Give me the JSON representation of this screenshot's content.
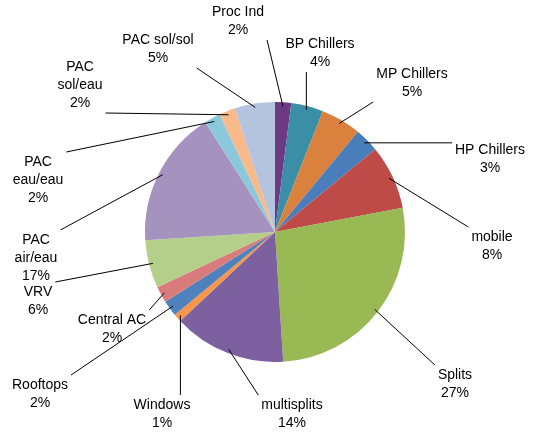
{
  "chart_data": {
    "type": "pie",
    "categories": [
      "Proc Ind",
      "BP Chillers",
      "MP Chillers",
      "HP Chillers",
      "mobile",
      "Splits",
      "multisplits",
      "Windows",
      "Rooftops",
      "Central AC",
      "VRV",
      "PAC air/eau",
      "PAC eau/eau",
      "PAC sol/eau",
      "PAC sol/sol"
    ],
    "values": [
      2,
      4,
      5,
      3,
      8,
      27,
      14,
      1,
      2,
      2,
      6,
      17,
      2,
      2,
      5
    ],
    "value_labels": [
      "2%",
      "4%",
      "5%",
      "3%",
      "8%",
      "27%",
      "14%",
      "1%",
      "2%",
      "2%",
      "6%",
      "17%",
      "2%",
      "2%",
      "5%"
    ],
    "colors": [
      "#6b3a83",
      "#3a8ea6",
      "#d9813d",
      "#4a7ebb",
      "#be4b48",
      "#98b954",
      "#7d60a0",
      "#f79646",
      "#4f81bd",
      "#d97b7b",
      "#b3cf8a",
      "#a592be",
      "#8cc8db",
      "#f9b98a",
      "#b4c3de"
    ],
    "data_labels": true
  }
}
